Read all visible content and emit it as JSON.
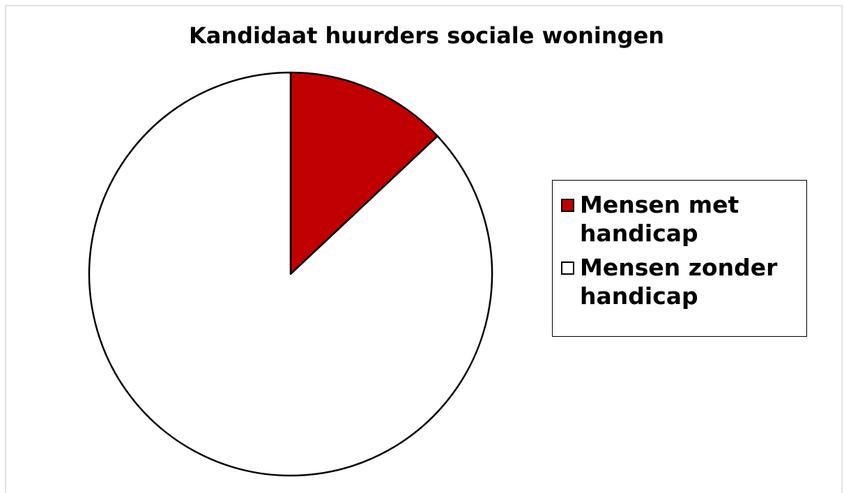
{
  "chart_data": {
    "type": "pie",
    "title": "Kandidaat huurders sociale woningen",
    "categories": [
      "Mensen met handicap",
      "Mensen zonder handicap"
    ],
    "values": [
      13,
      87
    ],
    "colors": [
      "#c00000",
      "#ffffff"
    ]
  }
}
